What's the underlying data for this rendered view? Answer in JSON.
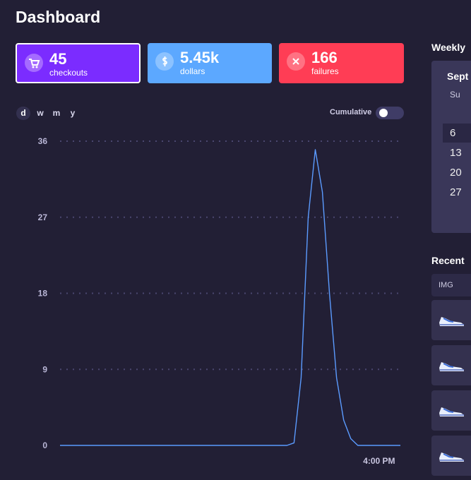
{
  "header": {
    "title": "Dashboard"
  },
  "stats": [
    {
      "value": "45",
      "label": "checkouts"
    },
    {
      "value": "5.45k",
      "label": "dollars"
    },
    {
      "value": "166",
      "label": "failures"
    }
  ],
  "tabs": [
    "d",
    "w",
    "m",
    "y"
  ],
  "toggle": {
    "label": "Cumulative"
  },
  "chart_data": {
    "type": "line",
    "color": "#5b9bff",
    "grid": true,
    "categories": [
      null,
      null,
      null,
      null,
      null,
      null,
      null,
      null,
      null,
      null,
      null,
      null,
      null,
      null,
      null,
      null,
      null,
      null,
      null,
      null,
      null,
      null,
      null,
      null,
      null,
      null,
      null,
      null,
      null,
      null,
      null,
      null,
      null,
      null,
      null,
      null,
      null,
      null,
      null,
      null,
      null,
      null,
      null,
      null,
      null,
      "4:00 PM",
      null,
      null,
      null
    ],
    "values": [
      0,
      0,
      0,
      0,
      0,
      0,
      0,
      0,
      0,
      0,
      0,
      0,
      0,
      0,
      0,
      0,
      0,
      0,
      0,
      0,
      0,
      0,
      0,
      0,
      0,
      0,
      0,
      0,
      0,
      0,
      0,
      0,
      0,
      0.3,
      8,
      27,
      35,
      30,
      18,
      8,
      3,
      0.8,
      0,
      0,
      0,
      0,
      0,
      0,
      0
    ],
    "ylim": [
      0,
      36
    ],
    "yticks": [
      0,
      9,
      18,
      27,
      36
    ]
  },
  "sidebar": {
    "weekly": {
      "title": "Weekly",
      "month": "Sept",
      "weekday": "Su",
      "days": [
        6,
        13,
        20,
        27
      ]
    },
    "recent": {
      "title": "Recent",
      "header": "IMG"
    }
  }
}
